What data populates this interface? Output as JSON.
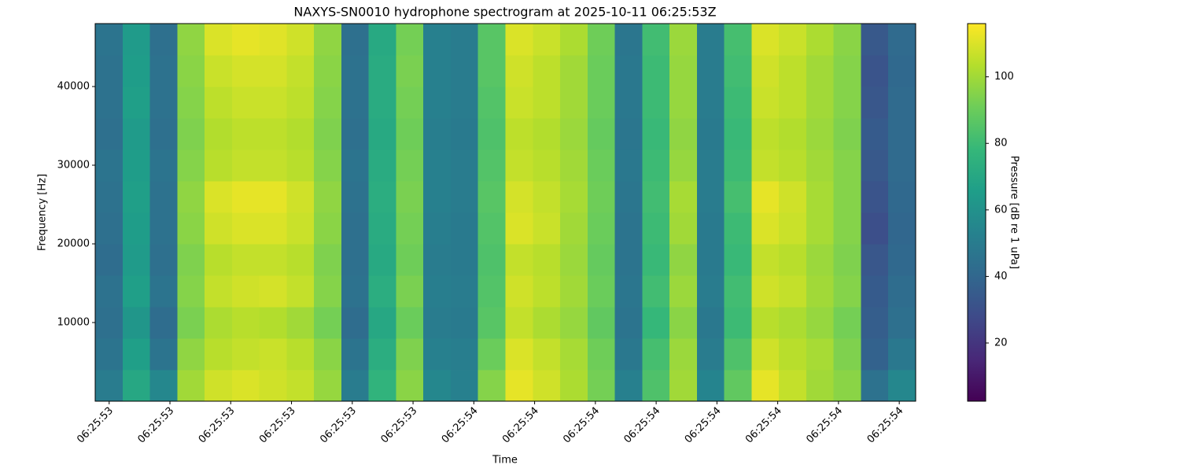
{
  "chart_data": {
    "type": "heatmap",
    "title": "NAXYS-SN0010 hydrophone spectrogram at 2025-10-11 06:25:53Z",
    "xlabel": "Time",
    "ylabel": "Frequency [Hz]",
    "colorbar_label": "Pressure [dB re 1 uPa]",
    "colormap": "viridis",
    "xlim": [
      53.377,
      54.727
    ],
    "ylim": [
      0,
      48000
    ],
    "xticks": [
      {
        "value": 53.4,
        "label": "06:25:53"
      },
      {
        "value": 53.5,
        "label": "06:25:53"
      },
      {
        "value": 53.6,
        "label": "06:25:53"
      },
      {
        "value": 53.7,
        "label": "06:25:53"
      },
      {
        "value": 53.8,
        "label": "06:25:53"
      },
      {
        "value": 53.9,
        "label": "06:25:53"
      },
      {
        "value": 54.0,
        "label": "06:25:54"
      },
      {
        "value": 54.1,
        "label": "06:25:54"
      },
      {
        "value": 54.2,
        "label": "06:25:54"
      },
      {
        "value": 54.3,
        "label": "06:25:54"
      },
      {
        "value": 54.4,
        "label": "06:25:54"
      },
      {
        "value": 54.5,
        "label": "06:25:54"
      },
      {
        "value": 54.6,
        "label": "06:25:54"
      },
      {
        "value": 54.7,
        "label": "06:25:54"
      }
    ],
    "yticks": [
      10000,
      20000,
      30000,
      40000
    ],
    "zlim": [
      2.5,
      116
    ],
    "zticks": [
      20,
      40,
      60,
      80,
      100
    ],
    "xbins": [
      53.377,
      53.422,
      53.467,
      53.512,
      53.557,
      53.602,
      53.647,
      53.692,
      53.737,
      53.782,
      53.827,
      53.872,
      53.917,
      53.962,
      54.007,
      54.052,
      54.097,
      54.142,
      54.187,
      54.232,
      54.277,
      54.322,
      54.367,
      54.412,
      54.457,
      54.502,
      54.547,
      54.592,
      54.637,
      54.682,
      54.727
    ],
    "ybins": [
      0,
      4000,
      8000,
      12000,
      16000,
      20000,
      24000,
      28000,
      32000,
      36000,
      40000,
      44000,
      48000
    ],
    "z": [
      [
        50,
        70,
        55,
        100,
        108,
        110,
        108,
        106,
        98,
        50,
        76,
        96,
        55,
        52,
        95,
        112,
        108,
        102,
        92,
        52,
        84,
        100,
        54,
        88,
        112,
        106,
        100,
        96,
        45,
        55
      ],
      [
        46,
        66,
        46,
        97,
        104,
        106,
        107,
        104,
        96,
        46,
        73,
        94,
        52,
        51,
        90,
        110,
        106,
        101,
        91,
        48,
        82,
        99,
        50,
        84,
        108,
        104,
        101,
        94,
        38,
        48
      ],
      [
        44,
        62,
        43,
        93,
        102,
        104,
        103,
        100,
        92,
        43,
        70,
        90,
        50,
        49,
        86,
        106,
        102,
        98,
        88,
        46,
        78,
        96,
        48,
        80,
        104,
        102,
        98,
        92,
        36,
        44
      ],
      [
        45,
        66,
        46,
        95,
        106,
        108,
        109,
        106,
        95,
        45,
        73,
        93,
        51,
        50,
        85,
        108,
        105,
        100,
        90,
        47,
        81,
        99,
        50,
        81,
        108,
        106,
        100,
        95,
        35,
        43
      ],
      [
        43,
        64,
        44,
        94,
        104,
        106,
        106,
        104,
        94,
        44,
        71,
        91,
        50,
        49,
        84,
        106,
        104,
        99,
        89,
        46,
        79,
        97,
        49,
        79,
        106,
        104,
        99,
        94,
        33,
        41
      ],
      [
        44,
        65,
        45,
        96,
        108,
        110,
        110,
        107,
        96,
        44,
        72,
        92,
        51,
        49,
        85,
        110,
        107,
        100,
        90,
        46,
        80,
        100,
        49,
        80,
        110,
        107,
        101,
        95,
        30,
        40
      ],
      [
        45,
        66,
        45,
        97,
        110,
        112,
        112,
        108,
        97,
        45,
        73,
        93,
        52,
        50,
        86,
        109,
        106,
        101,
        91,
        47,
        81,
        101,
        50,
        82,
        112,
        108,
        101,
        95,
        32,
        41
      ],
      [
        46,
        65,
        46,
        95,
        104,
        106,
        106,
        104,
        95,
        46,
        72,
        92,
        52,
        50,
        85,
        106,
        104,
        100,
        90,
        48,
        80,
        98,
        50,
        80,
        106,
        104,
        100,
        95,
        34,
        42
      ],
      [
        44,
        64,
        44,
        94,
        103,
        105,
        105,
        103,
        94,
        44,
        71,
        91,
        51,
        49,
        84,
        105,
        103,
        99,
        89,
        47,
        79,
        97,
        49,
        79,
        105,
        103,
        99,
        94,
        35,
        42
      ],
      [
        45,
        66,
        45,
        95,
        105,
        107,
        107,
        105,
        95,
        45,
        72,
        92,
        52,
        50,
        85,
        107,
        105,
        100,
        90,
        48,
        80,
        98,
        50,
        80,
        107,
        105,
        100,
        95,
        33,
        42
      ],
      [
        45,
        65,
        45,
        96,
        107,
        109,
        109,
        106,
        96,
        45,
        72,
        93,
        52,
        50,
        86,
        108,
        105,
        100,
        90,
        48,
        80,
        98,
        50,
        81,
        108,
        105,
        100,
        95,
        32,
        41
      ],
      [
        46,
        64,
        44,
        97,
        110,
        112,
        111,
        108,
        97,
        44,
        71,
        92,
        52,
        50,
        86,
        110,
        107,
        102,
        91,
        47,
        81,
        99,
        50,
        82,
        110,
        107,
        102,
        96,
        34,
        42
      ]
    ]
  }
}
